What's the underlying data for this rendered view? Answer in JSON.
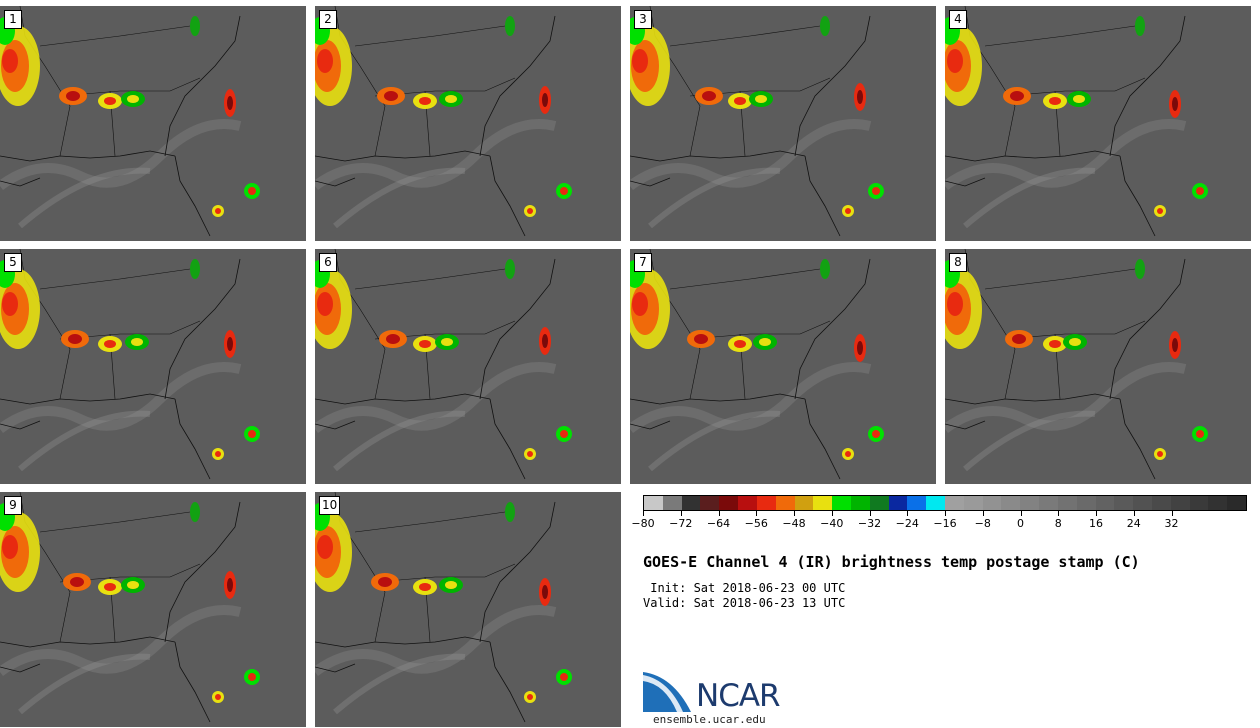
{
  "panels": [
    {
      "label": "1"
    },
    {
      "label": "2"
    },
    {
      "label": "3"
    },
    {
      "label": "4"
    },
    {
      "label": "5"
    },
    {
      "label": "6"
    },
    {
      "label": "7"
    },
    {
      "label": "8"
    },
    {
      "label": "9"
    },
    {
      "label": "10"
    }
  ],
  "colorbar": {
    "colors": [
      "#c8c8c8",
      "#7a7a7a",
      "#323232",
      "#5a1e1e",
      "#7a0a0a",
      "#b80f0f",
      "#e82a10",
      "#f06a0a",
      "#d0a010",
      "#e8e010",
      "#00e000",
      "#00b400",
      "#107a20",
      "#0a28a0",
      "#0a70e8",
      "#00e8f0",
      "#a0a0a0",
      "#9a9a9a",
      "#929292",
      "#8a8a8a",
      "#828282",
      "#7a7a7a",
      "#727272",
      "#6a6a6a",
      "#626262",
      "#5a5a5a",
      "#525252",
      "#4a4a4a",
      "#424242",
      "#3a3a3a",
      "#323232",
      "#2a2a2a"
    ],
    "tick_labels": [
      "−80",
      "−72",
      "−64",
      "−56",
      "−48",
      "−40",
      "−32",
      "−24",
      "−16",
      "−8",
      "0",
      "8",
      "16",
      "24",
      "32"
    ]
  },
  "title": "GOES-E Channel 4 (IR) brightness temp postage stamp (C)",
  "init": " Init: Sat 2018-06-23 00 UTC",
  "valid": "Valid: Sat 2018-06-23 13 UTC",
  "logo": {
    "text": "NCAR",
    "url": "ensemble.ucar.edu"
  }
}
